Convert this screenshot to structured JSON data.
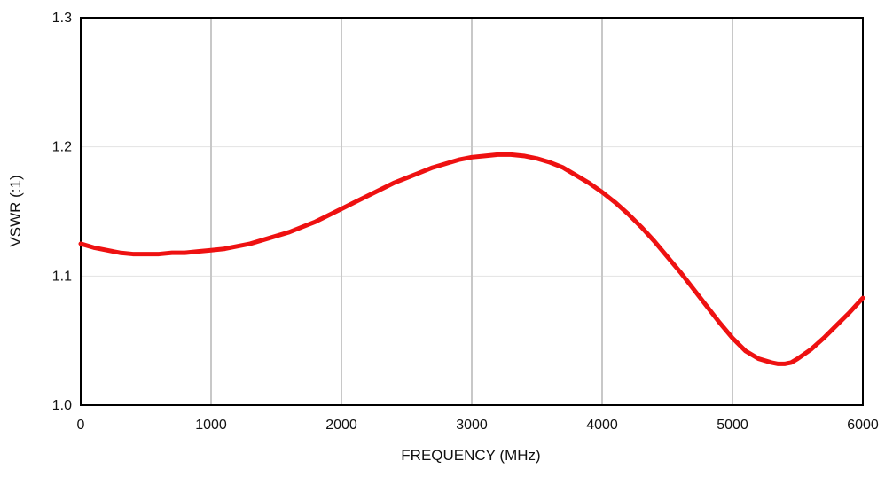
{
  "chart_data": {
    "type": "line",
    "title": "",
    "xlabel": "FREQUENCY (MHz)",
    "ylabel": "VSWR (:1)",
    "xlim": [
      0,
      6000
    ],
    "ylim": [
      1.0,
      1.3
    ],
    "x_ticks": [
      0,
      1000,
      2000,
      3000,
      4000,
      5000,
      6000
    ],
    "x_tick_labels": [
      "0",
      "1000",
      "2000",
      "3000",
      "4000",
      "5000",
      "6000"
    ],
    "y_ticks": [
      1.0,
      1.1,
      1.2,
      1.3
    ],
    "y_tick_labels": [
      "1.0",
      "1.1",
      "1.2",
      "1.3"
    ],
    "grid": {
      "vertical": true,
      "horizontal": true
    },
    "legend": "none",
    "colors": {
      "line": "#ee1111",
      "vertical_grid": "#c8c8c8",
      "horizontal_grid": "#e2e2e2",
      "frame": "#000000"
    },
    "series": [
      {
        "x": [
          0,
          100,
          200,
          300,
          400,
          500,
          600,
          700,
          800,
          900,
          1000,
          1100,
          1200,
          1300,
          1400,
          1500,
          1600,
          1700,
          1800,
          1900,
          2000,
          2100,
          2200,
          2300,
          2400,
          2500,
          2600,
          2700,
          2800,
          2900,
          3000,
          3100,
          3200,
          3300,
          3400,
          3500,
          3600,
          3700,
          3800,
          3900,
          4000,
          4100,
          4200,
          4300,
          4400,
          4500,
          4600,
          4700,
          4800,
          4900,
          5000,
          5100,
          5200,
          5300,
          5350,
          5400,
          5450,
          5500,
          5600,
          5700,
          5800,
          5900,
          6000
        ],
        "values": [
          1.125,
          1.122,
          1.12,
          1.118,
          1.117,
          1.117,
          1.117,
          1.118,
          1.118,
          1.119,
          1.12,
          1.121,
          1.123,
          1.125,
          1.128,
          1.131,
          1.134,
          1.138,
          1.142,
          1.147,
          1.152,
          1.157,
          1.162,
          1.167,
          1.172,
          1.176,
          1.18,
          1.184,
          1.187,
          1.19,
          1.192,
          1.193,
          1.194,
          1.194,
          1.193,
          1.191,
          1.188,
          1.184,
          1.178,
          1.172,
          1.165,
          1.157,
          1.148,
          1.138,
          1.127,
          1.115,
          1.103,
          1.09,
          1.077,
          1.064,
          1.052,
          1.042,
          1.036,
          1.033,
          1.032,
          1.032,
          1.033,
          1.036,
          1.043,
          1.052,
          1.062,
          1.072,
          1.083
        ]
      }
    ]
  }
}
